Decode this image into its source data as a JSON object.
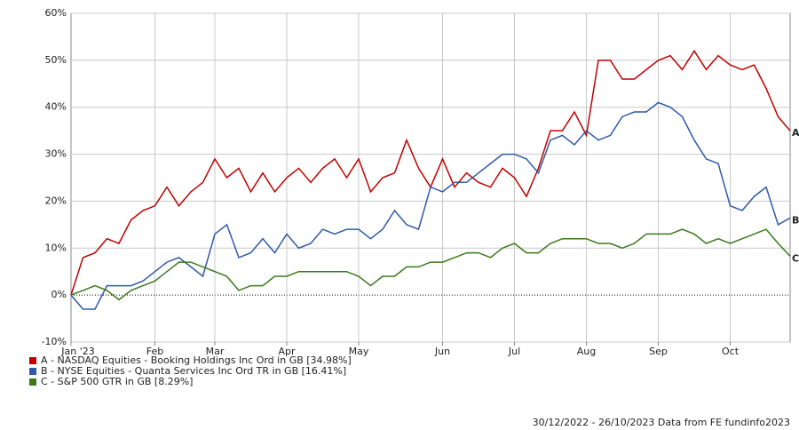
{
  "chart_data": {
    "type": "line",
    "categories": [
      "Jan '23",
      null,
      null,
      null,
      null,
      null,
      null,
      "Feb",
      null,
      null,
      null,
      null,
      "Mar",
      null,
      null,
      null,
      null,
      null,
      "Apr",
      null,
      null,
      null,
      null,
      null,
      "May",
      null,
      null,
      null,
      null,
      null,
      null,
      "Jun",
      null,
      null,
      null,
      null,
      null,
      "Jul",
      null,
      null,
      null,
      null,
      null,
      "Aug",
      null,
      null,
      null,
      null,
      null,
      "Sep",
      null,
      null,
      null,
      null,
      null,
      "Oct",
      null,
      null,
      null,
      null,
      null
    ],
    "series": [
      {
        "name": "A - NASDAQ Equities - Booking Holdings Inc Ord in GB [34.98%]",
        "end_label": "A",
        "color": "#c00000",
        "values": [
          0,
          8,
          9,
          12,
          11,
          16,
          18,
          19,
          23,
          19,
          22,
          24,
          29,
          25,
          27,
          22,
          26,
          22,
          25,
          27,
          24,
          27,
          29,
          25,
          29,
          22,
          25,
          26,
          33,
          27,
          23,
          29,
          23,
          26,
          24,
          23,
          27,
          25,
          21,
          27,
          35,
          35,
          39,
          34,
          50,
          50,
          46,
          46,
          48,
          50,
          51,
          48,
          52,
          48,
          51,
          49,
          48,
          49,
          44,
          38,
          34.98
        ]
      },
      {
        "name": "B - NYSE Equities - Quanta Services Inc Ord TR in GB [16.41%]",
        "end_label": "B",
        "color": "#2e5aa8",
        "values": [
          0,
          -3,
          -3,
          2,
          2,
          2,
          3,
          5,
          7,
          8,
          6,
          4,
          13,
          15,
          8,
          9,
          12,
          9,
          13,
          10,
          11,
          14,
          13,
          14,
          14,
          12,
          14,
          18,
          15,
          14,
          23,
          22,
          24,
          24,
          26,
          28,
          30,
          30,
          29,
          26,
          33,
          34,
          32,
          35,
          33,
          34,
          38,
          39,
          39,
          41,
          40,
          38,
          33,
          29,
          28,
          19,
          18,
          21,
          23,
          15,
          16.41
        ]
      },
      {
        "name": "C - S&P 500 GTR in GB [8.29%]",
        "end_label": "C",
        "color": "#3a7a1a",
        "values": [
          0,
          1,
          2,
          1,
          -1,
          1,
          2,
          3,
          5,
          7,
          7,
          6,
          5,
          4,
          1,
          2,
          2,
          4,
          4,
          5,
          5,
          5,
          5,
          5,
          4,
          2,
          4,
          4,
          6,
          6,
          7,
          7,
          8,
          9,
          9,
          8,
          10,
          11,
          9,
          9,
          11,
          12,
          12,
          12,
          11,
          11,
          10,
          11,
          13,
          13,
          13,
          14,
          13,
          11,
          12,
          11,
          12,
          13,
          14,
          11,
          8.29
        ]
      }
    ],
    "ylim": [
      -10,
      60
    ],
    "yticks": [
      {
        "value": -10,
        "label": "-10%"
      },
      {
        "value": 0,
        "label": "0%"
      },
      {
        "value": 10,
        "label": "10%"
      },
      {
        "value": 20,
        "label": "20%"
      },
      {
        "value": 30,
        "label": "30%"
      },
      {
        "value": 40,
        "label": "40%"
      },
      {
        "value": 50,
        "label": "50%"
      },
      {
        "value": 60,
        "label": "60%"
      }
    ],
    "grid": true,
    "legend": "bottom-left",
    "footer": "30/12/2022 - 26/10/2023 Data from FE fundinfo2023"
  }
}
